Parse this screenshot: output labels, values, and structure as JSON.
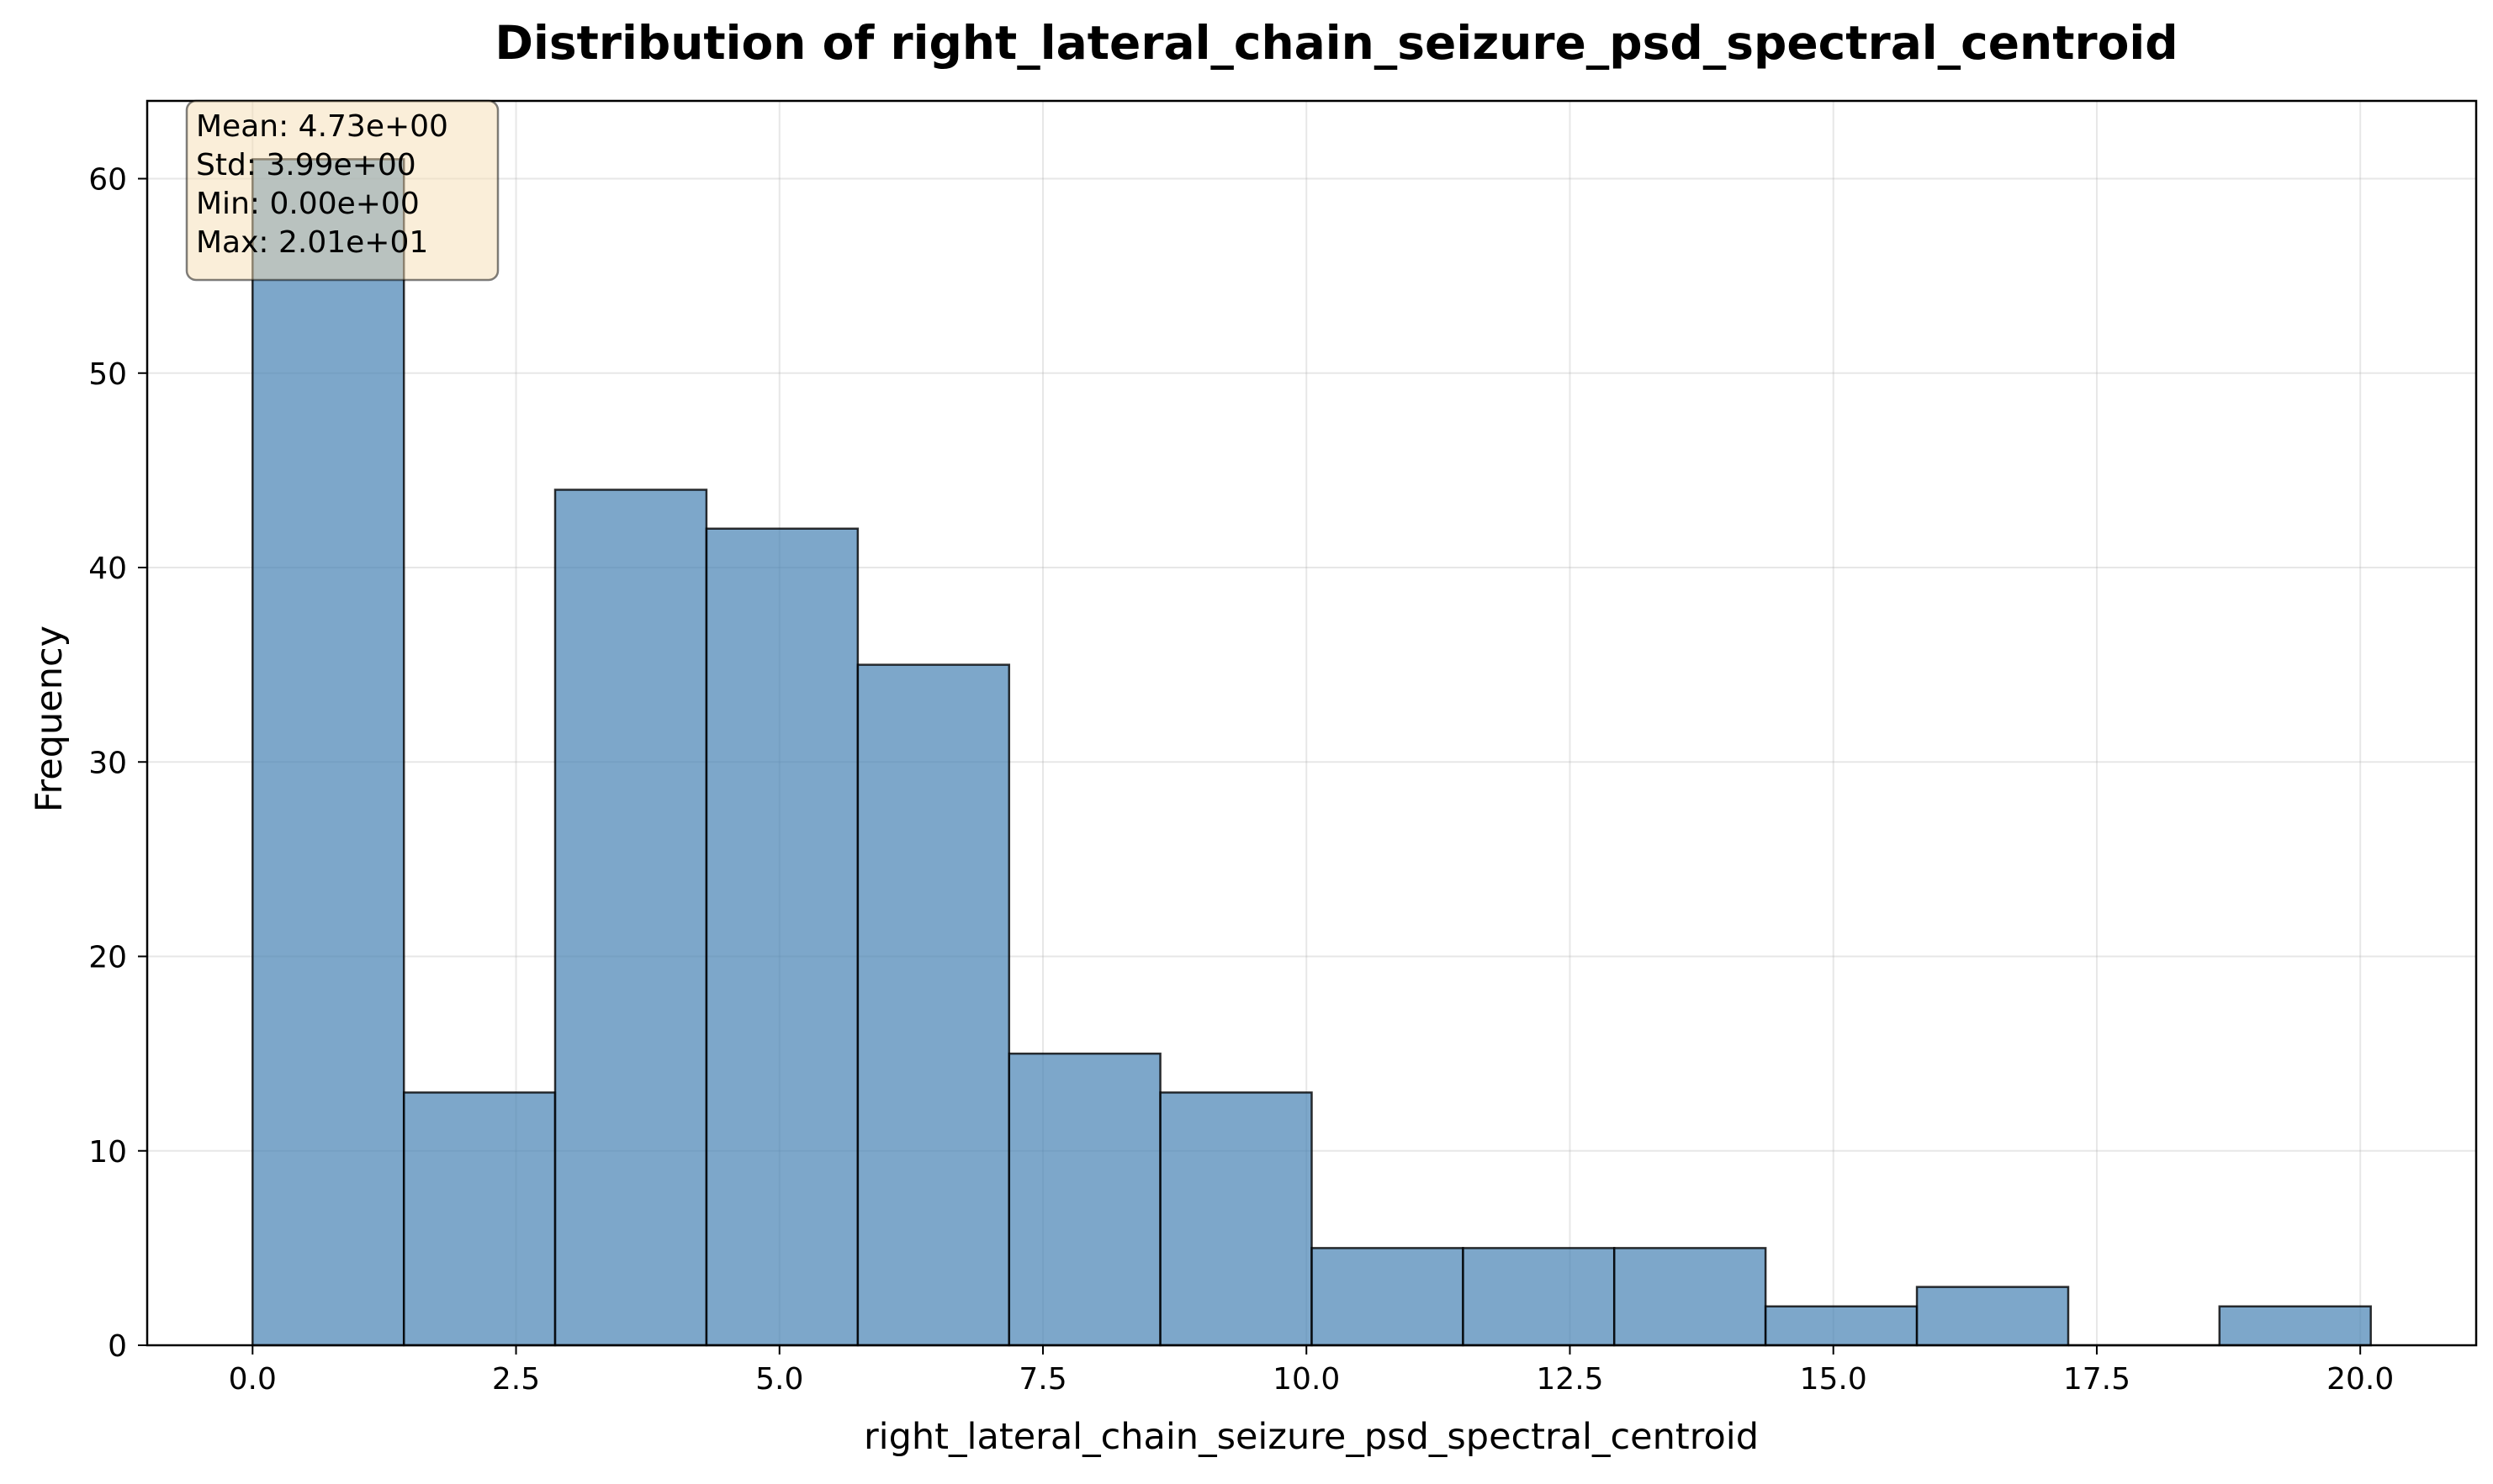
{
  "chart_data": {
    "type": "bar",
    "title": "Distribution of right_lateral_chain_seizure_psd_spectral_centroid",
    "xlabel": "right_lateral_chain_seizure_psd_spectral_centroid",
    "ylabel": "Frequency",
    "xlim": [
      -1.0,
      21.1
    ],
    "ylim": [
      0,
      64
    ],
    "xticks": [
      0.0,
      2.5,
      5.0,
      7.5,
      10.0,
      12.5,
      15.0,
      17.5,
      20.0
    ],
    "xtick_labels": [
      "0.0",
      "2.5",
      "5.0",
      "7.5",
      "10.0",
      "12.5",
      "15.0",
      "17.5",
      "20.0"
    ],
    "yticks": [
      0,
      10,
      20,
      30,
      40,
      50,
      60
    ],
    "ytick_labels": [
      "0",
      "10",
      "20",
      "30",
      "40",
      "50",
      "60"
    ],
    "bins": [
      {
        "x0": 0.0,
        "x1": 1.436,
        "count": 61
      },
      {
        "x0": 1.436,
        "x1": 2.871,
        "count": 13
      },
      {
        "x0": 2.871,
        "x1": 4.307,
        "count": 44
      },
      {
        "x0": 4.307,
        "x1": 5.743,
        "count": 42
      },
      {
        "x0": 5.743,
        "x1": 7.179,
        "count": 35
      },
      {
        "x0": 7.179,
        "x1": 8.614,
        "count": 15
      },
      {
        "x0": 8.614,
        "x1": 10.05,
        "count": 13
      },
      {
        "x0": 10.05,
        "x1": 11.486,
        "count": 5
      },
      {
        "x0": 11.486,
        "x1": 12.921,
        "count": 5
      },
      {
        "x0": 12.921,
        "x1": 14.357,
        "count": 5
      },
      {
        "x0": 14.357,
        "x1": 15.793,
        "count": 2
      },
      {
        "x0": 15.793,
        "x1": 17.229,
        "count": 3
      },
      {
        "x0": 17.229,
        "x1": 18.664,
        "count": 0
      },
      {
        "x0": 18.664,
        "x1": 20.1,
        "count": 2
      }
    ],
    "grid": true,
    "colors": {
      "bar": "#4682b4",
      "bar_edge": "#000000",
      "stats_box": "#f5deb3"
    },
    "stats": [
      "Mean: 4.73e+00",
      "Std: 3.99e+00",
      "Min: 0.00e+00",
      "Max: 2.01e+01"
    ]
  }
}
